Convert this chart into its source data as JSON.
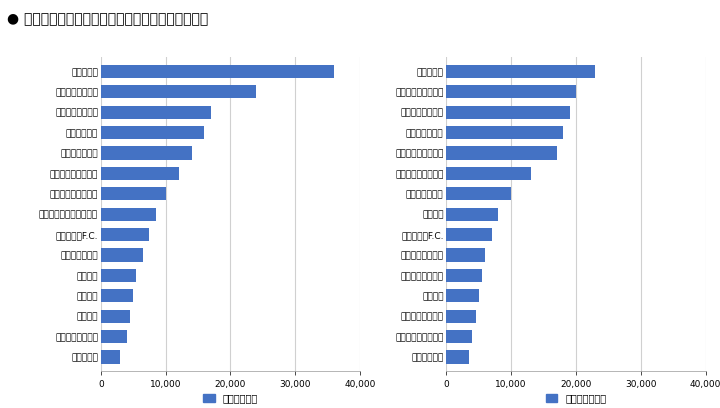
{
  "title": "仮説：チームの人気が観客動員数に影響している",
  "home_teams": [
    "ザスパ草津",
    "ＦＣ町田ゼルビア",
    "愛媛ＦＣ",
    "栃木ＳＣ",
    "ＦＣ岐阜",
    "東京ヴェルディ",
    "京都サンガF.C.",
    "ジェフユナイテッド千葉",
    "大宮アルディージャ",
    "ヴァンフォーレ甲府",
    "ヴィッセル神戸",
    "ベガルタ仙台",
    "名古屋グランパス",
    "横浜Ｆ・マリノス",
    "浦和レッズ"
  ],
  "home_values": [
    3000,
    4000,
    4500,
    5000,
    5500,
    6500,
    7500,
    8500,
    10000,
    12000,
    14000,
    16000,
    17000,
    24000,
    36000
  ],
  "away_teams": [
    "カターレ富山",
    "水戸ホーリーホック",
    "ザスパクサツ群馬",
    "愛媛ＦＣ",
    "モンテディオ山形",
    "カマタマーレ讃岐",
    "京都サンガF.C.",
    "横浜ＦＣ",
    "湘南ベルマーレ",
    "アルビレックス新潟",
    "大宮アルディージャ",
    "清水エスパルス",
    "横浜Ｆ・マリノス",
    "サンフレッチェ広島",
    "浦和レッズ"
  ],
  "away_values": [
    3500,
    4000,
    4500,
    5000,
    5500,
    6000,
    7000,
    8000,
    10000,
    13000,
    17000,
    18000,
    19000,
    20000,
    23000
  ],
  "bar_color": "#4472C4",
  "home_label": "ホーム動員力",
  "away_label": "アウェイ動員力",
  "xlim": [
    0,
    40000
  ],
  "xticks": [
    0,
    10000,
    20000,
    30000,
    40000
  ],
  "xtick_labels": [
    "0",
    "10,000",
    "20,000",
    "30,000",
    "40,000"
  ],
  "bg_color": "#ffffff",
  "grid_color": "#d0d0d0",
  "title_bullet": "● "
}
